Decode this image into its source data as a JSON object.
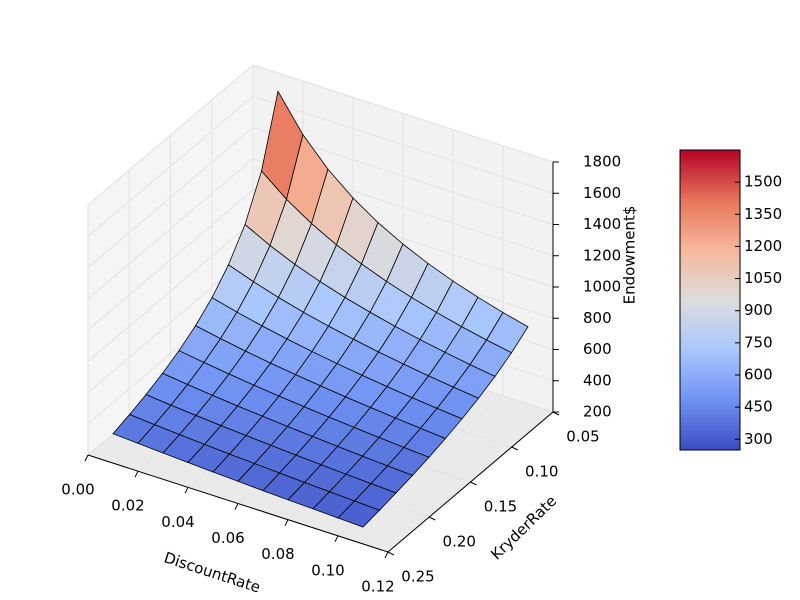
{
  "chart_data": {
    "type": "surface3d",
    "xlabel": "DiscountRate",
    "ylabel": "KryderRate",
    "zlabel": "Endowment$",
    "x": [
      0.01,
      0.02,
      0.03,
      0.04,
      0.05,
      0.06,
      0.07,
      0.08,
      0.09,
      0.1,
      0.11
    ],
    "y": [
      0.05,
      0.07,
      0.09,
      0.11,
      0.13,
      0.15,
      0.17,
      0.19,
      0.21,
      0.23,
      0.25
    ],
    "z": [
      [
        1683,
        1263,
        1010,
        842,
        721,
        631,
        561,
        505,
        459,
        421,
        388
      ],
      [
        1457,
        1133,
        927,
        785,
        680,
        600,
        537,
        486,
        443,
        408,
        378
      ],
      [
        1288,
        1030,
        858,
        736,
        644,
        572,
        515,
        468,
        429,
        396,
        368
      ],
      [
        1156,
        945,
        800,
        693,
        612,
        547,
        495,
        452,
        416,
        385,
        359
      ],
      [
        1050,
        875,
        750,
        656,
        583,
        525,
        477,
        438,
        404,
        375,
        350
      ],
      [
        964,
        815,
        707,
        624,
        558,
        505,
        461,
        424,
        393,
        366,
        342
      ],
      [
        892,
        764,
        669,
        594,
        535,
        486,
        446,
        412,
        382,
        357,
        334
      ],
      [
        831,
        720,
        635,
        568,
        514,
        470,
        432,
        400,
        372,
        348,
        327
      ],
      [
        779,
        681,
        606,
        545,
        495,
        454,
        419,
        389,
        363,
        341,
        321
      ],
      [
        733,
        647,
        579,
        524,
        478,
        440,
        407,
        379,
        355,
        333,
        314
      ],
      [
        694,
        617,
        555,
        505,
        463,
        427,
        396,
        370,
        347,
        326,
        308
      ]
    ],
    "xlim": [
      0,
      0.12
    ],
    "xticks": [
      {
        "value": 0,
        "label": "0.00"
      },
      0.02,
      0.04,
      0.06,
      0.08,
      {
        "value": 0.1,
        "label": "0.10"
      },
      0.12
    ],
    "ylim": [
      0.05,
      0.25
    ],
    "yticks": [
      0.05,
      {
        "value": 0.1,
        "label": "0.10"
      },
      0.15,
      {
        "value": 0.2,
        "label": "0.20"
      },
      0.25
    ],
    "zlim": [
      200,
      1800
    ],
    "zticks": [
      200,
      400,
      600,
      800,
      1000,
      1200,
      1400,
      1600,
      1800
    ],
    "clim": [
      250,
      1650
    ],
    "cticks": [
      300,
      450,
      600,
      750,
      900,
      1050,
      1200,
      1350,
      1500
    ],
    "colormap": [
      "#3b4cc0",
      "#6f92f3",
      "#aac7fd",
      "#dddcdc",
      "#f7b89c",
      "#e7745b",
      "#b40426"
    ],
    "grid": true
  }
}
